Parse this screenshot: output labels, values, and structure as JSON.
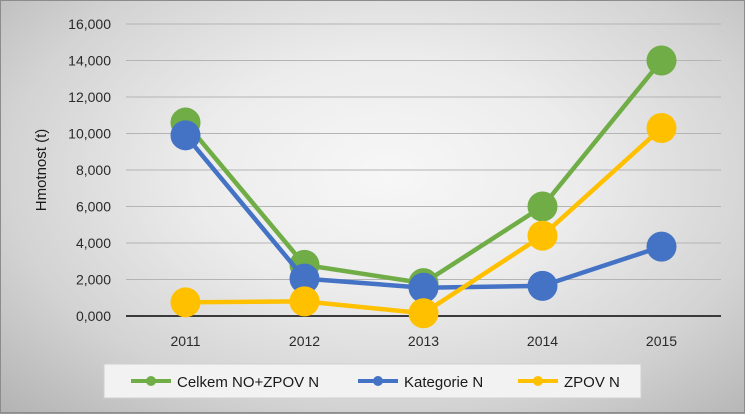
{
  "chart_data": {
    "type": "line",
    "title": "",
    "xlabel": "",
    "ylabel": "Hmotnost (t)",
    "categories": [
      "2011",
      "2012",
      "2013",
      "2014",
      "2015"
    ],
    "y_ticks": [
      "0,000",
      "2,000",
      "4,000",
      "6,000",
      "8,000",
      "10,000",
      "12,000",
      "14,000",
      "16,000"
    ],
    "ylim": [
      0,
      16000
    ],
    "grid": true,
    "legend_position": "bottom",
    "series": [
      {
        "name": "Celkem NO+ZPOV N",
        "color": "#70ad47",
        "values": [
          10600,
          2800,
          1800,
          6000,
          14000
        ]
      },
      {
        "name": "Kategorie N",
        "color": "#4472c4",
        "values": [
          9900,
          2050,
          1550,
          1650,
          3800
        ]
      },
      {
        "name": "ZPOV N",
        "color": "#ffc000",
        "values": [
          750,
          800,
          150,
          4400,
          10300
        ]
      }
    ]
  }
}
